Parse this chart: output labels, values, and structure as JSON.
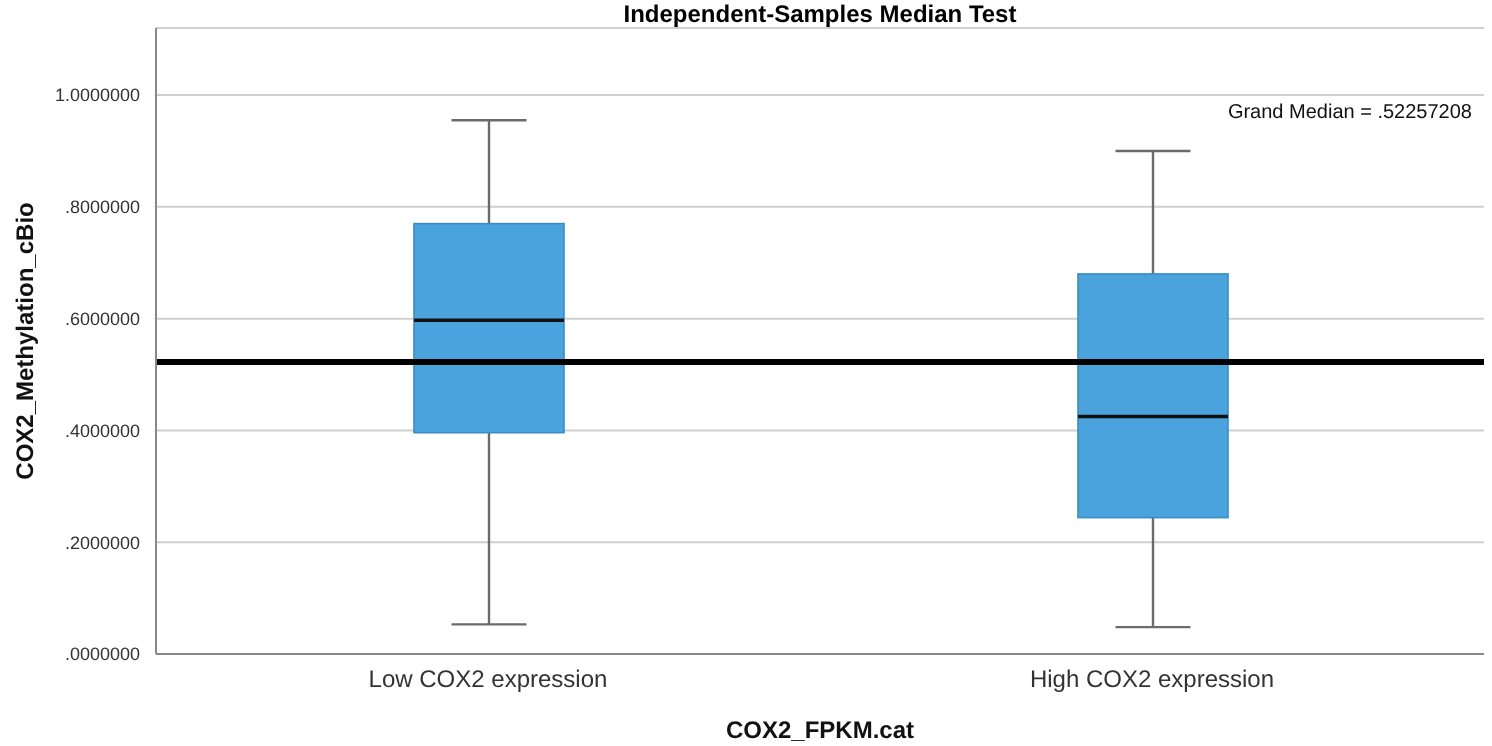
{
  "chart_data": {
    "type": "box",
    "title": "Independent-Samples Median Test",
    "xlabel": "COX2_FPKM.cat",
    "ylabel": "COX2_Methylation_cBio",
    "categories": [
      "Low COX2 expression",
      "High COX2 expression"
    ],
    "color": "#4aa3dc",
    "boxes": [
      {
        "low": 0.053,
        "q1": 0.396,
        "median": 0.597,
        "q3": 0.77,
        "high": 0.955
      },
      {
        "low": 0.048,
        "q1": 0.244,
        "median": 0.425,
        "q3": 0.68,
        "high": 0.9
      }
    ],
    "ylim": [
      0,
      1.12
    ],
    "yticks": [
      {
        "value": 0,
        "label": ".0000000"
      },
      {
        "value": 0.2,
        "label": ".2000000"
      },
      {
        "value": 0.4,
        "label": ".4000000"
      },
      {
        "value": 0.6,
        "label": ".6000000"
      },
      {
        "value": 0.8,
        "label": ".8000000"
      },
      {
        "value": 1,
        "label": "1.0000000"
      }
    ],
    "grid": "y",
    "ref_lines": [
      {
        "axis": "y",
        "value": 0.52257208,
        "color": "#000000"
      }
    ],
    "annotations": [
      "Grand Median = .52257208"
    ]
  }
}
